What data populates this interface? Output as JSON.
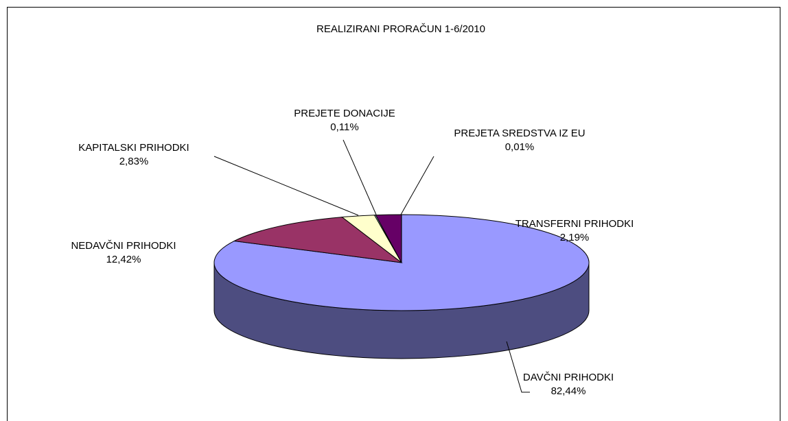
{
  "chart_data": {
    "type": "pie",
    "title": "REALIZIRANI PRORAČUN 1-6/2010",
    "categories": [
      "DAVČNI PRIHODKI",
      "NEDAVČNI PRIHODKI",
      "KAPITALSKI PRIHODKI",
      "PREJETE DONACIJE",
      "TRANSFERNI PRIHODKI",
      "PREJETA SREDSTVA IZ EU"
    ],
    "values": [
      82.44,
      12.42,
      2.83,
      0.11,
      2.19,
      0.01
    ],
    "value_labels": [
      "82,44%",
      "12,42%",
      "2,83%",
      "0,11%",
      "2,19%",
      "0,01%"
    ],
    "colors": [
      "#9999ff",
      "#993366",
      "#ffffcc",
      "#ccffff",
      "#660066",
      "#ff8080"
    ]
  }
}
